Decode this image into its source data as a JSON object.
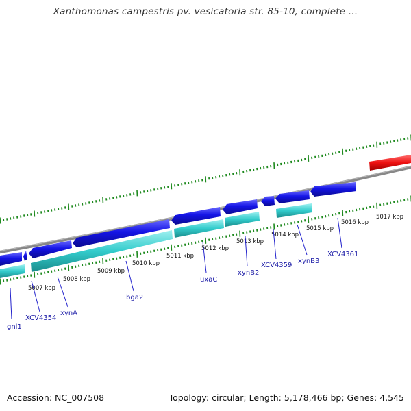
{
  "title": "Xanthomonas campestris pv. vesicatoria str. 85-10, complete ...",
  "footer": {
    "accession": "Accession: NC_007508",
    "summary": "Topology: circular; Length: 5,178,466 bp; Genes: 4,545"
  },
  "colors": {
    "forward_gene": "#1414e6",
    "cds": "#33cccc",
    "highlight_gene": "#ee1111",
    "backbone": "#888888",
    "ticks": "#1f8a1f",
    "label_line": "#2222cc"
  },
  "scale_labels": [
    "5007 kbp",
    "5008 kbp",
    "5009 kbp",
    "5010 kbp",
    "5011 kbp",
    "5012 kbp",
    "5013 kbp",
    "5014 kbp",
    "5015 kbp",
    "5016 kbp",
    "5017 kbp"
  ],
  "gene_labels": [
    "gnl1",
    "XCV4354",
    "xynA",
    "bga2",
    "uxaC",
    "xynB2",
    "XCV4359",
    "xynB3",
    "XCV4361"
  ]
}
